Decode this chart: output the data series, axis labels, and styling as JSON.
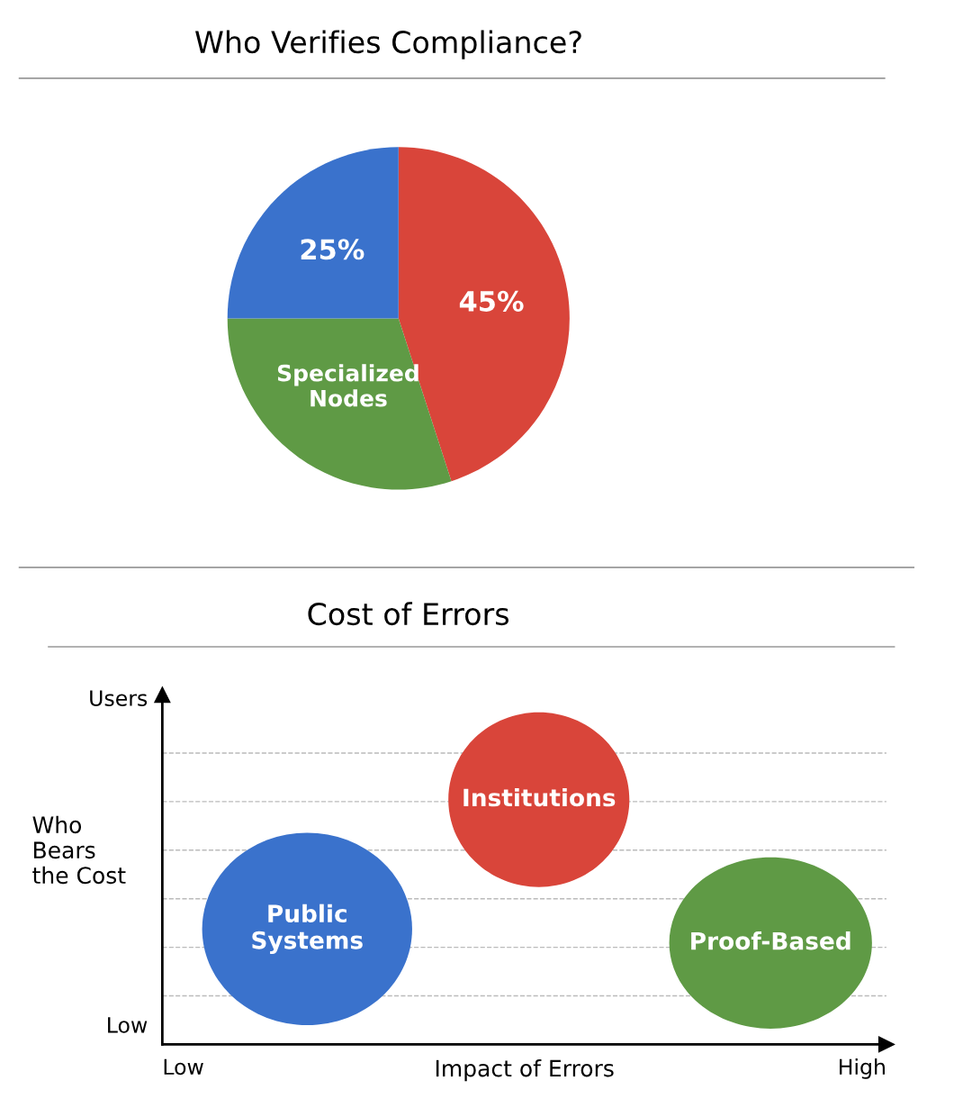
{
  "chart_data": [
    {
      "type": "pie",
      "title": "Who Verifies Compliance?",
      "categories": [
        null,
        "Specialized\nNodes",
        null
      ],
      "values": [
        45,
        30,
        25
      ],
      "colors": [
        "#d9453a",
        "#5f9a45",
        "#3a72cc"
      ],
      "value_labels": [
        "45%",
        null,
        "25%"
      ]
    },
    {
      "type": "other",
      "title": "Cost of Errors",
      "xlabel": "Impact of Errors",
      "ylabel": "Who\nBears\nthe Cost",
      "annotations": [
        "Low",
        "High",
        "Low",
        "Users"
      ],
      "categories": [
        "Public\nSystems",
        "Institutions",
        "Proof-Based"
      ],
      "colors": [
        "#3a72cc",
        "#d9453a",
        "#5f9a45"
      ]
    }
  ]
}
